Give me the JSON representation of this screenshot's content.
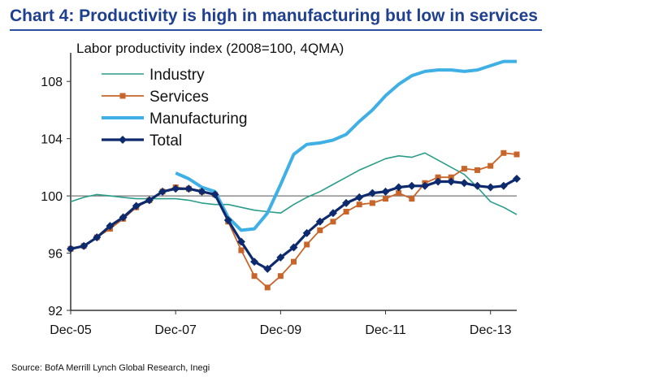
{
  "title": "Chart 4: Productivity is high in manufacturing but low in services",
  "source": "Source: BofA Merrill Lynch Global Research, Inegi",
  "chart_data": {
    "type": "line",
    "title": "Chart 4: Productivity is high in manufacturing but low in services",
    "ylabel": "Labor productivity index (2008=100, 4QMA)",
    "xlabel": "",
    "ylim": [
      92,
      110
    ],
    "yticks": [
      92,
      96,
      100,
      104,
      108
    ],
    "ytick_labels": [
      "92",
      "96",
      "100",
      "104",
      "108"
    ],
    "x_start_quarter": 0,
    "xticks": [
      0,
      8,
      16,
      24,
      32
    ],
    "xtick_labels": [
      "Dec-05",
      "Dec-07",
      "Dec-09",
      "Dec-11",
      "Dec-13"
    ],
    "reference_line": 100,
    "legend": [
      "Industry",
      "Services",
      "Manufacturing",
      "Total"
    ],
    "series": [
      {
        "name": "Industry",
        "color": "#2a9d8a",
        "marker": "none",
        "x": [
          0,
          1,
          2,
          3,
          4,
          5,
          6,
          7,
          8,
          9,
          10,
          11,
          12,
          13,
          14,
          15,
          16,
          17,
          18,
          19,
          20,
          21,
          22,
          23,
          24,
          25,
          26,
          27,
          28,
          29,
          30,
          31,
          32,
          33,
          34
        ],
        "values": [
          99.6,
          99.9,
          100.1,
          100.0,
          99.9,
          99.8,
          99.8,
          99.8,
          99.8,
          99.7,
          99.5,
          99.4,
          99.4,
          99.2,
          99.0,
          98.9,
          98.8,
          99.4,
          99.9,
          100.3,
          100.8,
          101.3,
          101.8,
          102.2,
          102.6,
          102.8,
          102.7,
          103.0,
          102.5,
          102.0,
          101.5,
          100.6,
          99.6,
          99.2,
          98.7
        ]
      },
      {
        "name": "Services",
        "color": "#c8652a",
        "marker": "square",
        "x": [
          0,
          1,
          2,
          3,
          4,
          5,
          6,
          7,
          8,
          9,
          10,
          11,
          12,
          13,
          14,
          15,
          16,
          17,
          18,
          19,
          20,
          21,
          22,
          23,
          24,
          25,
          26,
          27,
          28,
          29,
          30,
          31,
          32,
          33,
          34
        ],
        "values": [
          96.3,
          96.5,
          97.1,
          97.7,
          98.4,
          99.2,
          99.7,
          100.3,
          100.6,
          100.5,
          100.3,
          100.1,
          98.2,
          96.2,
          94.4,
          93.6,
          94.4,
          95.4,
          96.6,
          97.6,
          98.2,
          98.9,
          99.4,
          99.5,
          99.8,
          100.2,
          99.8,
          100.9,
          101.3,
          101.3,
          101.9,
          101.8,
          102.1,
          103.0,
          102.9
        ]
      },
      {
        "name": "Manufacturing",
        "color": "#3fb0e6",
        "marker": "none",
        "x": [
          8,
          9,
          10,
          11,
          12,
          13,
          14,
          15,
          16,
          17,
          18,
          19,
          20,
          21,
          22,
          23,
          24,
          25,
          26,
          27,
          28,
          29,
          30,
          31,
          32,
          33,
          34
        ],
        "values": [
          101.6,
          101.2,
          100.6,
          100.3,
          98.5,
          97.6,
          97.7,
          98.8,
          100.8,
          102.9,
          103.6,
          103.7,
          103.9,
          104.3,
          105.2,
          106.0,
          107.0,
          107.8,
          108.4,
          108.7,
          108.8,
          108.8,
          108.7,
          108.8,
          109.1,
          109.4,
          109.4
        ]
      },
      {
        "name": "Total",
        "color": "#0e2a6e",
        "marker": "diamond",
        "x": [
          0,
          1,
          2,
          3,
          4,
          5,
          6,
          7,
          8,
          9,
          10,
          11,
          12,
          13,
          14,
          15,
          16,
          17,
          18,
          19,
          20,
          21,
          22,
          23,
          24,
          25,
          26,
          27,
          28,
          29,
          30,
          31,
          32,
          33,
          34
        ],
        "values": [
          96.3,
          96.5,
          97.1,
          97.9,
          98.5,
          99.3,
          99.7,
          100.3,
          100.5,
          100.5,
          100.3,
          100.1,
          98.3,
          96.8,
          95.4,
          94.9,
          95.7,
          96.4,
          97.4,
          98.2,
          98.8,
          99.5,
          99.9,
          100.2,
          100.3,
          100.6,
          100.7,
          100.7,
          101.0,
          101.0,
          100.9,
          100.7,
          100.6,
          100.7,
          101.2
        ]
      }
    ]
  }
}
